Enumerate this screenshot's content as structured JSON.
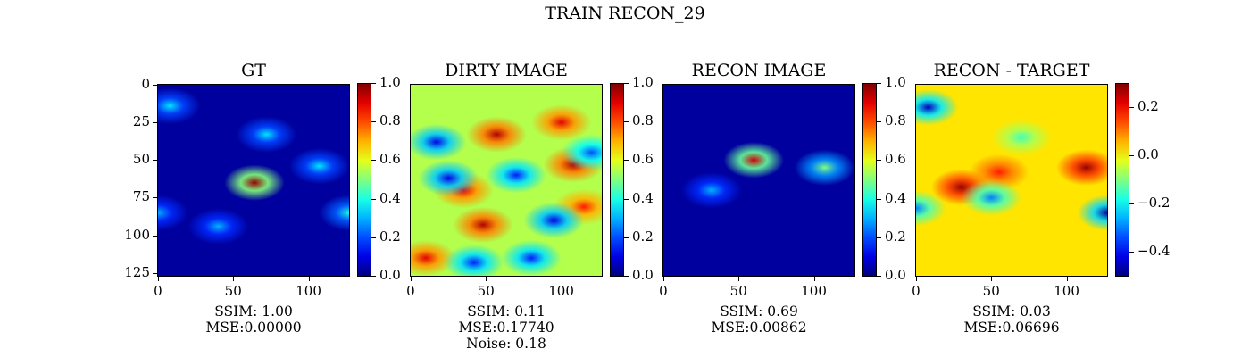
{
  "suptitle": "TRAIN RECON_29",
  "chart_data": [
    {
      "type": "heatmap",
      "title": "GT",
      "colormap": "jet",
      "x_ticks": [
        "0",
        "50",
        "100"
      ],
      "y_ticks": [
        "0",
        "25",
        "50",
        "75",
        "100",
        "125"
      ],
      "xlim": [
        0,
        127
      ],
      "ylim": [
        127,
        0
      ],
      "colorbar": {
        "range": [
          0.0,
          1.0
        ],
        "ticks": [
          "0.0",
          "0.2",
          "0.4",
          "0.6",
          "0.8",
          "1.0"
        ]
      },
      "blobs": [
        {
          "x": 64,
          "y": 65,
          "value": 0.98
        },
        {
          "x": 8,
          "y": 14,
          "value": 0.35
        },
        {
          "x": 72,
          "y": 33,
          "value": 0.35
        },
        {
          "x": 107,
          "y": 54,
          "value": 0.35
        },
        {
          "x": 127,
          "y": 85,
          "value": 0.4
        },
        {
          "x": 40,
          "y": 94,
          "value": 0.3
        },
        {
          "x": 0,
          "y": 85,
          "value": 0.3
        }
      ],
      "stats": [
        "SSIM: 1.00",
        "MSE:0.00000"
      ]
    },
    {
      "type": "heatmap",
      "title": "DIRTY IMAGE",
      "colormap": "jet",
      "x_ticks": [
        "0",
        "50",
        "100"
      ],
      "xlim": [
        0,
        127
      ],
      "ylim": [
        127,
        0
      ],
      "colorbar": {
        "range": [
          0.0,
          1.0
        ],
        "ticks": [
          "0.0",
          "0.2",
          "0.4",
          "0.6",
          "0.8",
          "1.0"
        ]
      },
      "background_value": 0.55,
      "blobs": [
        {
          "x": 57,
          "y": 33,
          "value": 0.95
        },
        {
          "x": 100,
          "y": 25,
          "value": 0.9
        },
        {
          "x": 108,
          "y": 53,
          "value": 0.95
        },
        {
          "x": 48,
          "y": 93,
          "value": 0.95
        },
        {
          "x": 35,
          "y": 70,
          "value": 0.9
        },
        {
          "x": 115,
          "y": 81,
          "value": 0.85
        },
        {
          "x": 10,
          "y": 115,
          "value": 0.9
        },
        {
          "x": 17,
          "y": 38,
          "value": 0.1
        },
        {
          "x": 25,
          "y": 62,
          "value": 0.1
        },
        {
          "x": 95,
          "y": 90,
          "value": 0.1
        },
        {
          "x": 70,
          "y": 60,
          "value": 0.15
        },
        {
          "x": 80,
          "y": 115,
          "value": 0.15
        },
        {
          "x": 42,
          "y": 118,
          "value": 0.15
        },
        {
          "x": 120,
          "y": 45,
          "value": 0.2
        }
      ],
      "stats": [
        "SSIM: 0.11",
        "MSE:0.17740",
        "Noise: 0.18"
      ]
    },
    {
      "type": "heatmap",
      "title": "RECON IMAGE",
      "colormap": "jet",
      "x_ticks": [
        "0",
        "50",
        "100"
      ],
      "xlim": [
        0,
        127
      ],
      "ylim": [
        127,
        0
      ],
      "colorbar": {
        "range": [
          0.0,
          1.0
        ],
        "ticks": [
          "0.0",
          "0.2",
          "0.4",
          "0.6",
          "0.8",
          "1.0"
        ]
      },
      "blobs": [
        {
          "x": 60,
          "y": 50,
          "value": 0.92
        },
        {
          "x": 32,
          "y": 70,
          "value": 0.3
        },
        {
          "x": 107,
          "y": 55,
          "value": 0.5
        }
      ],
      "stats": [
        "SSIM: 0.69",
        "MSE:0.00862"
      ]
    },
    {
      "type": "heatmap",
      "title": "RECON - TARGET",
      "colormap": "jet",
      "x_ticks": [
        "0",
        "50",
        "100"
      ],
      "xlim": [
        0,
        127
      ],
      "ylim": [
        127,
        0
      ],
      "colorbar": {
        "range": [
          -0.5,
          0.3
        ],
        "ticks": [
          "0.2",
          "0.0",
          "−0.2",
          "−0.4"
        ],
        "tick_values": [
          0.2,
          0.0,
          -0.2,
          -0.4
        ]
      },
      "background_value": 0.02,
      "blobs": [
        {
          "x": 30,
          "y": 68,
          "value": 0.28
        },
        {
          "x": 55,
          "y": 58,
          "value": 0.18
        },
        {
          "x": 113,
          "y": 55,
          "value": 0.28
        },
        {
          "x": 8,
          "y": 15,
          "value": -0.45
        },
        {
          "x": 127,
          "y": 85,
          "value": -0.48
        },
        {
          "x": 50,
          "y": 75,
          "value": -0.3
        },
        {
          "x": 70,
          "y": 35,
          "value": -0.15
        },
        {
          "x": 0,
          "y": 82,
          "value": -0.3
        }
      ],
      "stats": [
        "SSIM: 0.03",
        "MSE:0.06696"
      ]
    }
  ]
}
